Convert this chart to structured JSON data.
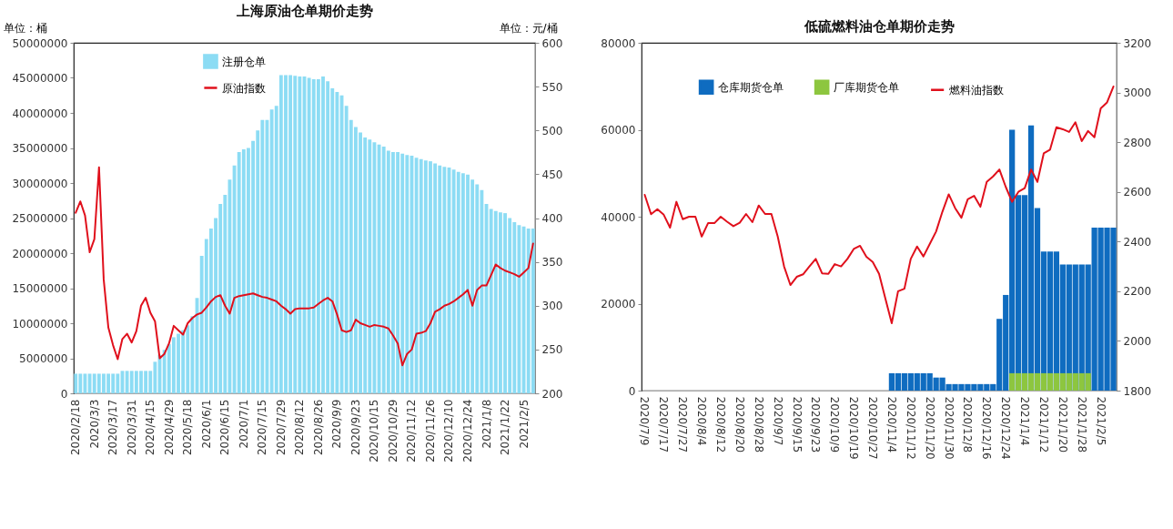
{
  "chart_data": [
    {
      "type": "bar",
      "title": "上海原油仓单期价走势",
      "ylabel": "单位：桶",
      "y2label": "单位：元/桶",
      "legend": "top",
      "categories": [
        "2020/2/18",
        null,
        null,
        null,
        "2020/3/3",
        null,
        null,
        null,
        "2020/3/17",
        null,
        null,
        null,
        "2020/3/31",
        null,
        null,
        null,
        "2020/4/15",
        null,
        null,
        null,
        "2020/4/29",
        null,
        null,
        null,
        "2020/5/18",
        null,
        null,
        null,
        "2020/6/1",
        null,
        null,
        null,
        "2020/6/15",
        null,
        null,
        null,
        "2020/7/1",
        null,
        null,
        null,
        "2020/7/15",
        null,
        null,
        null,
        "2020/7/29",
        null,
        null,
        null,
        "2020/8/12",
        null,
        null,
        null,
        "2020/8/26",
        null,
        null,
        null,
        "2020/9/9",
        null,
        null,
        null,
        "2020/9/23",
        null,
        null,
        null,
        "2020/10/15",
        null,
        null,
        null,
        "2020/10/29",
        null,
        null,
        null,
        "2020/11/12",
        null,
        null,
        null,
        "2020/11/26",
        null,
        null,
        null,
        "2020/12/10",
        null,
        null,
        null,
        "2020/12/24",
        null,
        null,
        null,
        "2021/1/8",
        null,
        null,
        null,
        "2021/1/22",
        null,
        null,
        null,
        "2021/2/5",
        null,
        null
      ],
      "series": [
        {
          "name": "注册仓单",
          "color": "#8cdcf4",
          "values": [
            2800000,
            2800000,
            2800000,
            2800000,
            2800000,
            2800000,
            2800000,
            2800000,
            2800000,
            2800000,
            3200000,
            3200000,
            3200000,
            3200000,
            3200000,
            3200000,
            3200000,
            4500000,
            5500000,
            6200000,
            7000000,
            8000000,
            8500000,
            9000000,
            9700000,
            11000000,
            13600000,
            19600000,
            22000000,
            23500000,
            25000000,
            27000000,
            28300000,
            30500000,
            32500000,
            34400000,
            34800000,
            35000000,
            36000000,
            37500000,
            39000000,
            39000000,
            40500000,
            41000000,
            45400000,
            45400000,
            45400000,
            45300000,
            45200000,
            45200000,
            45000000,
            44800000,
            44800000,
            45200000,
            44500000,
            43500000,
            43000000,
            42500000,
            41000000,
            39000000,
            38000000,
            37200000,
            36500000,
            36200000,
            35800000,
            35500000,
            35200000,
            34600000,
            34400000,
            34400000,
            34200000,
            34000000,
            33900000,
            33600000,
            33400000,
            33200000,
            33100000,
            32800000,
            32500000,
            32300000,
            32200000,
            31900000,
            31600000,
            31400000,
            31200000,
            30500000,
            29800000,
            29000000,
            27000000,
            26300000,
            26000000,
            25800000,
            25700000,
            25000000,
            24400000,
            24000000,
            23800000,
            23500000,
            23500000
          ]
        },
        {
          "name": "原油指数",
          "type": "line",
          "axis": "y2",
          "color": "#e0101c",
          "values": [
            406,
            419,
            403,
            361,
            376,
            458,
            330,
            275,
            255,
            239,
            262,
            268,
            258,
            271,
            300,
            309,
            292,
            282,
            240,
            245,
            257,
            277,
            272,
            267,
            280,
            286,
            290,
            292,
            298,
            305,
            310,
            312,
            300,
            291,
            309,
            311,
            312,
            313,
            314,
            312,
            310,
            309,
            307,
            305,
            300,
            296,
            291,
            296,
            297,
            297,
            297,
            298,
            302,
            306,
            309,
            305,
            290,
            272,
            270,
            272,
            284,
            280,
            278,
            276,
            278,
            277,
            276,
            274,
            266,
            257,
            232,
            245,
            250,
            268,
            269,
            271,
            280,
            293,
            296,
            300,
            302,
            305,
            309,
            313,
            318,
            300,
            318,
            323,
            323,
            335,
            347,
            343,
            340,
            338,
            336,
            333,
            338,
            343,
            371
          ]
        }
      ],
      "ylim": [
        0,
        50000000
      ],
      "yticks": [
        0,
        5000000,
        10000000,
        15000000,
        20000000,
        25000000,
        30000000,
        35000000,
        40000000,
        45000000,
        50000000
      ],
      "y2lim": [
        200,
        600
      ],
      "y2ticks": [
        200,
        250,
        300,
        350,
        400,
        450,
        500,
        550,
        600
      ]
    },
    {
      "type": "bar",
      "title": "低硫燃料油仓单期价走势",
      "legend": "top",
      "categories": [
        "2020/7/9",
        null,
        null,
        "2020/7/17",
        null,
        null,
        "2020/7/27",
        null,
        null,
        "2020/8/4",
        null,
        null,
        "2020/8/12",
        null,
        null,
        "2020/8/20",
        null,
        null,
        "2020/8/28",
        null,
        null,
        "2020/9/7",
        null,
        null,
        "2020/9/15",
        null,
        null,
        "2020/9/23",
        null,
        null,
        "2020/10/9",
        null,
        null,
        "2020/10/19",
        null,
        null,
        "2020/10/27",
        null,
        null,
        "2020/11/4",
        null,
        null,
        "2020/11/12",
        null,
        null,
        "2020/11/20",
        null,
        null,
        "2020/11/30",
        null,
        null,
        "2020/12/8",
        null,
        null,
        "2020/12/16",
        null,
        null,
        "2020/12/24",
        null,
        null,
        "2021/1/4",
        null,
        null,
        "2021/1/12",
        null,
        null,
        "2021/1/20",
        null,
        null,
        "2021/1/28",
        null,
        null,
        "2021/2/5",
        null,
        null
      ],
      "series": [
        {
          "name": "仓库期货仓单",
          "color": "#0f6cc0",
          "values": [
            null,
            null,
            null,
            null,
            null,
            null,
            null,
            null,
            null,
            null,
            null,
            null,
            null,
            null,
            null,
            null,
            null,
            null,
            null,
            null,
            null,
            null,
            null,
            null,
            null,
            null,
            null,
            null,
            null,
            null,
            null,
            null,
            null,
            null,
            null,
            null,
            null,
            null,
            null,
            4000,
            4000,
            4000,
            4000,
            4000,
            4000,
            4000,
            3000,
            3000,
            1500,
            1500,
            1500,
            1500,
            1500,
            1500,
            1500,
            1500,
            16500,
            22000,
            60000,
            45000,
            45000,
            61000,
            42000,
            32000,
            32000,
            32000,
            29000,
            29000,
            29000,
            29000,
            29000,
            37500,
            37500,
            37500,
            37500
          ]
        },
        {
          "name": "厂库期货仓单",
          "color": "#8dc63f",
          "values": [
            null,
            null,
            null,
            null,
            null,
            null,
            null,
            null,
            null,
            null,
            null,
            null,
            null,
            null,
            null,
            null,
            null,
            null,
            null,
            null,
            null,
            null,
            null,
            null,
            null,
            null,
            null,
            null,
            null,
            null,
            null,
            null,
            null,
            null,
            null,
            null,
            null,
            null,
            null,
            null,
            null,
            null,
            null,
            null,
            null,
            null,
            null,
            null,
            null,
            null,
            null,
            null,
            null,
            null,
            null,
            null,
            null,
            null,
            4000,
            4000,
            4000,
            4000,
            4000,
            4000,
            4000,
            4000,
            4000,
            4000,
            4000,
            4000,
            4000,
            null,
            null,
            null,
            null
          ]
        },
        {
          "name": "燃料油指数",
          "type": "line",
          "axis": "y2",
          "color": "#e0101c",
          "values": [
            2588,
            2510,
            2530,
            2508,
            2456,
            2560,
            2490,
            2500,
            2500,
            2420,
            2474,
            2474,
            2500,
            2480,
            2462,
            2476,
            2511,
            2478,
            2545,
            2511,
            2511,
            2420,
            2300,
            2225,
            2258,
            2268,
            2300,
            2330,
            2272,
            2270,
            2309,
            2300,
            2330,
            2370,
            2383,
            2339,
            2318,
            2270,
            2170,
            2071,
            2200,
            2210,
            2330,
            2380,
            2340,
            2390,
            2440,
            2520,
            2590,
            2535,
            2496,
            2570,
            2584,
            2540,
            2640,
            2662,
            2690,
            2620,
            2560,
            2600,
            2615,
            2690,
            2640,
            2755,
            2770,
            2860,
            2852,
            2841,
            2880,
            2804,
            2845,
            2820,
            2936,
            2960,
            3024
          ]
        }
      ],
      "ylim": [
        0,
        80000
      ],
      "yticks": [
        0,
        20000,
        40000,
        60000,
        80000
      ],
      "y2lim": [
        1800,
        3200
      ],
      "y2ticks": [
        1800,
        2000,
        2200,
        2400,
        2600,
        2800,
        3000,
        3200
      ]
    }
  ]
}
